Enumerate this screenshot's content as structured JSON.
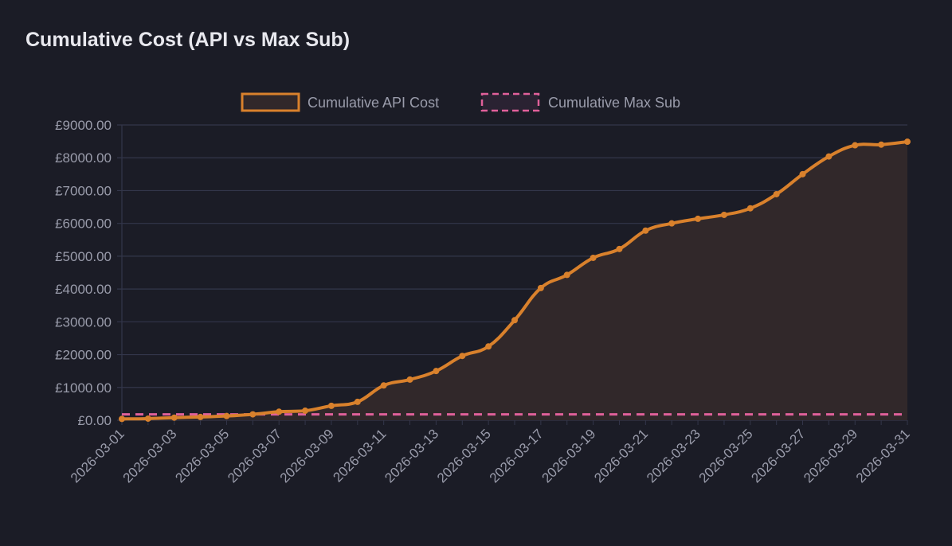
{
  "chart_data": {
    "type": "area",
    "title": "Cumulative Cost (API vs Max Sub)",
    "xlabel": "",
    "ylabel": "",
    "ylim": [
      0,
      9000
    ],
    "y_ticks": [
      "£0.00",
      "£1000.00",
      "£2000.00",
      "£3000.00",
      "£4000.00",
      "£5000.00",
      "£6000.00",
      "£7000.00",
      "£8000.00",
      "£9000.00"
    ],
    "grid": true,
    "legend_position": "top-center",
    "x": [
      "2026-03-01",
      "2026-03-02",
      "2026-03-03",
      "2026-03-04",
      "2026-03-05",
      "2026-03-06",
      "2026-03-07",
      "2026-03-08",
      "2026-03-09",
      "2026-03-10",
      "2026-03-11",
      "2026-03-12",
      "2026-03-13",
      "2026-03-14",
      "2026-03-15",
      "2026-03-16",
      "2026-03-17",
      "2026-03-18",
      "2026-03-19",
      "2026-03-20",
      "2026-03-21",
      "2026-03-22",
      "2026-03-23",
      "2026-03-24",
      "2026-03-25",
      "2026-03-26",
      "2026-03-27",
      "2026-03-28",
      "2026-03-29",
      "2026-03-30",
      "2026-03-31"
    ],
    "x_tick_labels": [
      "2026-03-01",
      "2026-03-03",
      "2026-03-05",
      "2026-03-07",
      "2026-03-09",
      "2026-03-11",
      "2026-03-13",
      "2026-03-15",
      "2026-03-17",
      "2026-03-19",
      "2026-03-21",
      "2026-03-23",
      "2026-03-25",
      "2026-03-27",
      "2026-03-29",
      "2026-03-31"
    ],
    "series": [
      {
        "name": "Cumulative API Cost",
        "color": "#d9812c",
        "values": [
          40,
          50,
          80,
          100,
          130,
          180,
          260,
          290,
          440,
          560,
          1060,
          1240,
          1500,
          1960,
          2250,
          3050,
          4030,
          4430,
          4950,
          5220,
          5780,
          6000,
          6140,
          6260,
          6460,
          6890,
          7500,
          8040,
          8380,
          8400,
          8490
        ]
      },
      {
        "name": "Cumulative Max Sub",
        "color": "#e0609a",
        "dashed": true,
        "values": [
          180,
          180,
          180,
          180,
          180,
          180,
          180,
          180,
          180,
          180,
          180,
          180,
          180,
          180,
          180,
          180,
          180,
          180,
          180,
          180,
          180,
          180,
          180,
          180,
          180,
          180,
          180,
          180,
          180,
          180,
          180
        ]
      }
    ]
  }
}
